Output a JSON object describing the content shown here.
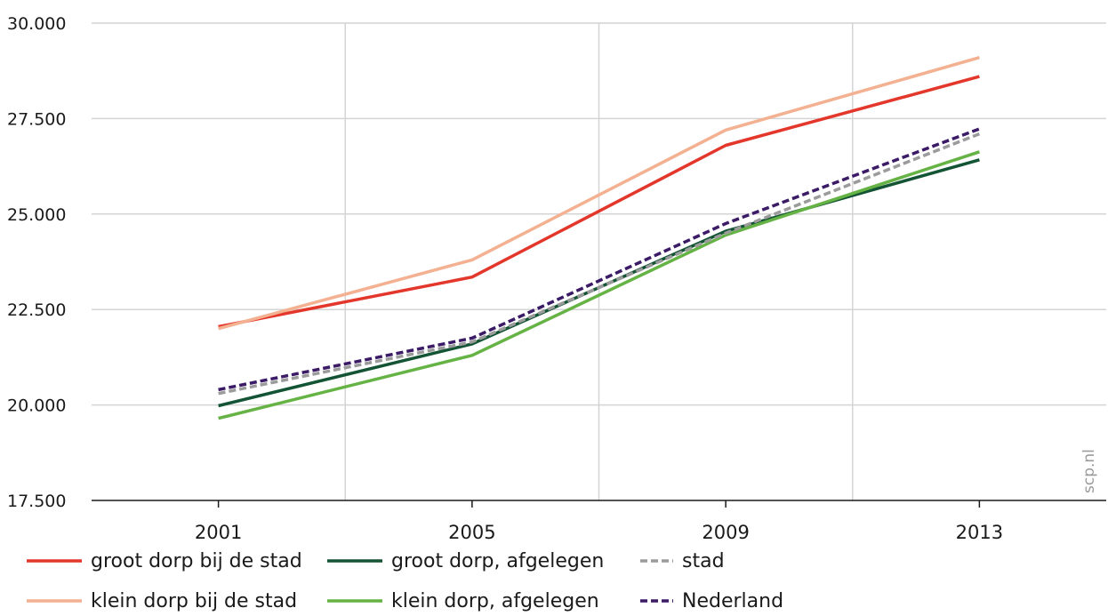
{
  "chart_data": {
    "type": "line",
    "title": "",
    "xlabel": "",
    "ylabel": "",
    "x": [
      "2001",
      "2005",
      "2009",
      "2013"
    ],
    "ylim": [
      17500,
      30000
    ],
    "y_ticks": [
      "17.500",
      "20.000",
      "22.500",
      "25.000",
      "27.500",
      "30.000"
    ],
    "y_tick_values": [
      17500,
      20000,
      22500,
      25000,
      27500,
      30000
    ],
    "grid": true,
    "legend_position": "bottom",
    "series": [
      {
        "name": "groot dorp bij de stad",
        "values": [
          22050,
          23350,
          26800,
          28600
        ],
        "color": "#e3372b",
        "dash": "solid"
      },
      {
        "name": "klein dorp bij de stad",
        "values": [
          22000,
          23800,
          27200,
          29100
        ],
        "color": "#f4b191",
        "dash": "solid"
      },
      {
        "name": "groot dorp, afgelegen",
        "values": [
          19980,
          21600,
          24550,
          26420
        ],
        "color": "#135434",
        "dash": "solid"
      },
      {
        "name": "klein dorp, afgelegen",
        "values": [
          19650,
          21300,
          24450,
          26630
        ],
        "color": "#66b345",
        "dash": "solid"
      },
      {
        "name": "stad",
        "values": [
          20300,
          21650,
          24500,
          27100
        ],
        "color": "#9b9b9b",
        "dash": "dashed"
      },
      {
        "name": "Nederland",
        "values": [
          20400,
          21750,
          24750,
          27230
        ],
        "color": "#3b1a66",
        "dash": "dashed"
      }
    ],
    "watermark": "scp.nl"
  }
}
